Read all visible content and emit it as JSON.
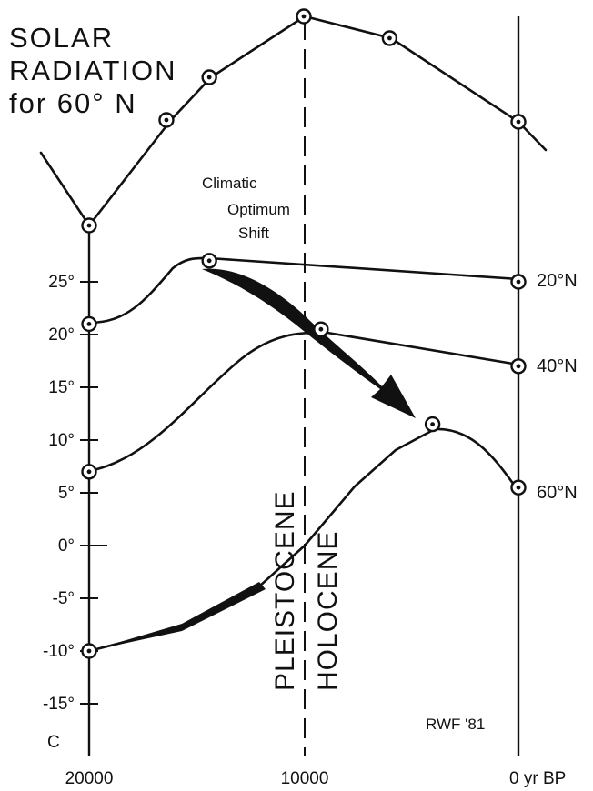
{
  "chart_data": {
    "type": "line",
    "title": [
      "SOLAR",
      "RADIATION",
      "for 60° N"
    ],
    "x_ticks": [
      "20000",
      "10000",
      "0 yr BP"
    ],
    "x_range": [
      20000,
      0
    ],
    "y_unit_label": "C",
    "y_ticks": [
      "25°",
      "20°",
      "15°",
      "10°",
      "5°",
      "0°",
      "-5°",
      "-10°",
      "-15°"
    ],
    "y_range": [
      -17,
      28
    ],
    "solar_radiation": {
      "x": [
        20000,
        16400,
        14400,
        10000,
        6000,
        0
      ],
      "marker": [
        true,
        true,
        true,
        true,
        true,
        true
      ]
    },
    "series": [
      {
        "name": "20°N",
        "x": [
          20000,
          14400,
          0
        ],
        "y": [
          21,
          27,
          25
        ]
      },
      {
        "name": "40°N",
        "x": [
          20000,
          9200,
          0
        ],
        "y": [
          7,
          20.5,
          17
        ]
      },
      {
        "name": "60°N",
        "x": [
          20000,
          4000,
          0
        ],
        "y": [
          -10,
          11.5,
          5.5
        ]
      }
    ],
    "annotations": {
      "shift_label": [
        "Climatic",
        "Optimum",
        "Shift"
      ],
      "pleistocene": "PLEISTOCENE",
      "holocene": "HOLOCENE",
      "credit": "RWF '81"
    }
  }
}
